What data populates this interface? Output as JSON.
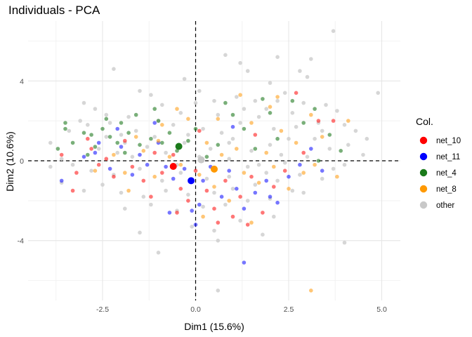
{
  "chart_data": {
    "type": "scatter",
    "title": "Individuals - PCA",
    "xlabel": "Dim1 (15.6%)",
    "ylabel": "Dim2 (10.6%)",
    "xlim": [
      -4.5,
      5.5
    ],
    "ylim": [
      -7,
      7
    ],
    "x_ticks": [
      -2.5,
      0.0,
      2.5,
      5.0
    ],
    "x_tick_labels": [
      "-2.5",
      "0.0",
      "2.5",
      "5.0"
    ],
    "y_ticks": [
      -4,
      0,
      4
    ],
    "y_tick_labels": [
      "-4",
      "0",
      "4"
    ],
    "grid": true,
    "reference_lines": {
      "x": 0,
      "y": 0,
      "style": "dashed"
    },
    "legend": {
      "title": "Col.",
      "position": "right",
      "entries": [
        {
          "label": "net_10",
          "color": "#ff0000"
        },
        {
          "label": "net_11",
          "color": "#0000ff"
        },
        {
          "label": "net_4",
          "color": "#1a7a1a"
        },
        {
          "label": "net_8",
          "color": "#ff9900"
        },
        {
          "label": "other",
          "color": "#c8c8c8"
        }
      ]
    },
    "series": [
      {
        "name": "other",
        "color": "#cfcfcf",
        "points": [
          [
            3.7,
            6.5
          ],
          [
            0.8,
            5.3
          ],
          [
            2.2,
            5.2
          ],
          [
            3.1,
            5.1
          ],
          [
            -2.2,
            4.6
          ],
          [
            2.8,
            4.5
          ],
          [
            4.9,
            3.4
          ],
          [
            -0.3,
            4.1
          ],
          [
            1.4,
            4.5
          ],
          [
            2.0,
            3.9
          ],
          [
            3.0,
            4.2
          ],
          [
            -1.5,
            3.5
          ],
          [
            -2.7,
            2.6
          ],
          [
            -2.4,
            2.3
          ],
          [
            0.5,
            3.0
          ],
          [
            1.6,
            3.0
          ],
          [
            2.2,
            3.0
          ],
          [
            3.5,
            2.8
          ],
          [
            4.3,
            1.5
          ],
          [
            4.0,
            1.8
          ],
          [
            -3.1,
            2.0
          ],
          [
            -1.2,
            3.3
          ],
          [
            0.1,
            3.5
          ],
          [
            1.1,
            3.2
          ],
          [
            2.6,
            2.4
          ],
          [
            3.3,
            1.9
          ],
          [
            -3.9,
            0.9
          ],
          [
            -3.6,
            0.1
          ],
          [
            -3.3,
            -0.2
          ],
          [
            -2.8,
            -0.5
          ],
          [
            -2.2,
            -0.7
          ],
          [
            -1.5,
            -0.4
          ],
          [
            -0.9,
            -1.0
          ],
          [
            -0.4,
            -0.6
          ],
          [
            0.3,
            -0.9
          ],
          [
            0.9,
            -0.8
          ],
          [
            1.4,
            -0.3
          ],
          [
            1.9,
            -0.6
          ],
          [
            2.4,
            -0.1
          ],
          [
            3.0,
            0.2
          ],
          [
            3.6,
            0.6
          ],
          [
            4.1,
            0.8
          ],
          [
            -2.0,
            1.3
          ],
          [
            -1.6,
            1.5
          ],
          [
            -1.1,
            1.2
          ],
          [
            -0.6,
            1.8
          ],
          [
            0.2,
            1.6
          ],
          [
            0.7,
            1.4
          ],
          [
            1.2,
            1.9
          ],
          [
            1.7,
            2.2
          ],
          [
            2.1,
            1.6
          ],
          [
            2.7,
            1.7
          ],
          [
            3.2,
            1.1
          ],
          [
            -2.6,
            0.6
          ],
          [
            -2.1,
            0.4
          ],
          [
            -1.7,
            0.2
          ],
          [
            -1.3,
            0.7
          ],
          [
            -0.8,
            0.4
          ],
          [
            -0.3,
            0.9
          ],
          [
            0.4,
            0.6
          ],
          [
            0.9,
            0.9
          ],
          [
            1.5,
            0.5
          ],
          [
            2.0,
            0.8
          ],
          [
            2.5,
            1.1
          ],
          [
            -3.4,
            1.5
          ],
          [
            -2.9,
            1.8
          ],
          [
            -2.3,
            1.9
          ],
          [
            -1.8,
            2.2
          ],
          [
            -1.0,
            2.0
          ],
          [
            -0.4,
            2.4
          ],
          [
            0.6,
            2.3
          ],
          [
            1.3,
            2.6
          ],
          [
            1.9,
            2.6
          ],
          [
            2.9,
            2.9
          ],
          [
            -2.5,
            -1.2
          ],
          [
            -2.0,
            -1.6
          ],
          [
            -1.4,
            -1.8
          ],
          [
            -0.8,
            -1.5
          ],
          [
            -0.2,
            -1.7
          ],
          [
            0.5,
            -1.6
          ],
          [
            1.0,
            -1.4
          ],
          [
            1.6,
            -1.2
          ],
          [
            2.2,
            -1.0
          ],
          [
            2.8,
            -0.7
          ],
          [
            -1.9,
            -2.4
          ],
          [
            -1.2,
            -2.2
          ],
          [
            -0.5,
            -2.5
          ],
          [
            0.2,
            -2.3
          ],
          [
            0.8,
            -2.2
          ],
          [
            1.4,
            -2.0
          ],
          [
            2.0,
            -1.9
          ],
          [
            2.6,
            -1.5
          ],
          [
            -0.1,
            -3.3
          ],
          [
            0.5,
            -3.5
          ],
          [
            1.2,
            -3.0
          ],
          [
            2.1,
            -2.8
          ],
          [
            -3.0,
            -1.5
          ],
          [
            -3.6,
            -1.1
          ],
          [
            4.5,
            0.3
          ],
          [
            4.0,
            -0.2
          ],
          [
            3.4,
            -0.9
          ],
          [
            2.9,
            -1.6
          ],
          [
            -1.0,
            -4.6
          ],
          [
            -1.5,
            -3.6
          ],
          [
            0.6,
            -4.0
          ],
          [
            1.8,
            -3.7
          ],
          [
            4.0,
            -4.1
          ],
          [
            0.6,
            -6.5
          ],
          [
            1.2,
            4.9
          ],
          [
            -3.0,
            2.9
          ],
          [
            3.8,
            2.5
          ],
          [
            0.0,
            2.9
          ],
          [
            -0.9,
            2.8
          ],
          [
            2.4,
            3.4
          ],
          [
            -1.9,
            0.9
          ],
          [
            -0.5,
            -0.2
          ],
          [
            0.1,
            0.2
          ],
          [
            0.9,
            0.1
          ],
          [
            1.7,
            -0.2
          ],
          [
            3.7,
            -0.4
          ],
          [
            -3.9,
            -0.3
          ],
          [
            -2.4,
            1.2
          ],
          [
            -0.2,
            1.3
          ],
          [
            1.0,
            1.1
          ],
          [
            2.3,
            0.3
          ],
          [
            3.4,
            1.5
          ],
          [
            4.6,
            1.1
          ]
        ]
      },
      {
        "name": "net_4",
        "color": "#1f7a1f",
        "points": [
          [
            -3.5,
            1.9
          ],
          [
            -3.5,
            1.6
          ],
          [
            -3.3,
            0.9
          ],
          [
            -3.0,
            1.4
          ],
          [
            -2.8,
            1.3
          ],
          [
            -2.7,
            0.7
          ],
          [
            -2.5,
            1.6
          ],
          [
            -2.3,
            1.2
          ],
          [
            -2.1,
            0.9
          ],
          [
            -2.0,
            1.9
          ],
          [
            -1.8,
            1.4
          ],
          [
            -1.6,
            2.3
          ],
          [
            -1.5,
            0.8
          ],
          [
            -1.2,
            1.1
          ],
          [
            -1.0,
            2.0
          ],
          [
            -0.9,
            0.9
          ],
          [
            -0.7,
            1.4
          ],
          [
            -0.5,
            0.5
          ],
          [
            -0.2,
            1.0
          ],
          [
            0.0,
            1.6
          ],
          [
            0.3,
            0.2
          ],
          [
            0.6,
            0.8
          ],
          [
            1.0,
            2.3
          ],
          [
            1.3,
            1.6
          ],
          [
            1.6,
            0.6
          ],
          [
            2.0,
            2.4
          ],
          [
            2.2,
            1.1
          ],
          [
            2.6,
            3.0
          ],
          [
            2.9,
            1.9
          ],
          [
            3.2,
            2.6
          ],
          [
            3.6,
            1.3
          ],
          [
            3.9,
            0.5
          ],
          [
            -3.7,
            0.6
          ],
          [
            -2.4,
            2.1
          ],
          [
            -1.1,
            2.6
          ],
          [
            0.8,
            2.9
          ],
          [
            1.8,
            3.1
          ],
          [
            -2.9,
            0.3
          ],
          [
            -1.9,
            0.4
          ],
          [
            3.3,
            0.0
          ]
        ]
      },
      {
        "name": "net_10",
        "color": "#ff1a1a",
        "points": [
          [
            -3.3,
            -1.5
          ],
          [
            -3.2,
            -0.6
          ],
          [
            -2.8,
            0.6
          ],
          [
            -2.6,
            -0.2
          ],
          [
            -2.4,
            0.1
          ],
          [
            -2.2,
            -0.8
          ],
          [
            -1.9,
            1.0
          ],
          [
            -1.7,
            -0.3
          ],
          [
            -1.4,
            -1.0
          ],
          [
            -1.1,
            0.4
          ],
          [
            -0.9,
            -0.6
          ],
          [
            -0.6,
            0.3
          ],
          [
            -0.4,
            -1.4
          ],
          [
            -0.2,
            -2.0
          ],
          [
            0.0,
            -0.5
          ],
          [
            0.3,
            -1.5
          ],
          [
            0.5,
            -2.4
          ],
          [
            0.8,
            -1.0
          ],
          [
            1.0,
            -2.8
          ],
          [
            1.2,
            -1.8
          ],
          [
            1.5,
            -0.8
          ],
          [
            1.8,
            -2.6
          ],
          [
            2.1,
            -1.3
          ],
          [
            2.4,
            -0.5
          ],
          [
            2.9,
            0.4
          ],
          [
            3.3,
            2.0
          ],
          [
            3.7,
            2.0
          ],
          [
            2.7,
            3.4
          ],
          [
            -1.2,
            -1.8
          ],
          [
            -0.5,
            -2.6
          ],
          [
            0.6,
            -3.1
          ],
          [
            1.4,
            -3.2
          ],
          [
            -3.6,
            0.3
          ],
          [
            -2.9,
            1.1
          ],
          [
            0.1,
            1.5
          ],
          [
            1.6,
            1.3
          ]
        ]
      },
      {
        "name": "net_11",
        "color": "#1a1aff",
        "points": [
          [
            -3.6,
            -1.0
          ],
          [
            -3.0,
            0.2
          ],
          [
            -2.7,
            0.4
          ],
          [
            -2.3,
            -0.4
          ],
          [
            -2.0,
            0.7
          ],
          [
            -1.7,
            -0.7
          ],
          [
            -1.5,
            0.3
          ],
          [
            -1.3,
            -0.2
          ],
          [
            -1.0,
            0.9
          ],
          [
            -0.8,
            -0.3
          ],
          [
            -0.6,
            -0.9
          ],
          [
            -0.3,
            -0.4
          ],
          [
            -0.1,
            -2.5
          ],
          [
            0.1,
            -2.2
          ],
          [
            0.2,
            -1.0
          ],
          [
            0.4,
            -0.3
          ],
          [
            0.7,
            -1.8
          ],
          [
            0.9,
            -0.5
          ],
          [
            1.1,
            -1.4
          ],
          [
            1.3,
            -2.4
          ],
          [
            1.6,
            -1.6
          ],
          [
            1.9,
            -1.0
          ],
          [
            2.2,
            -2.1
          ],
          [
            2.5,
            -0.8
          ],
          [
            2.8,
            -0.2
          ],
          [
            3.1,
            0.6
          ],
          [
            3.4,
            -0.5
          ],
          [
            1.3,
            -5.1
          ],
          [
            -0.7,
            -2.6
          ],
          [
            0.0,
            -3.2
          ],
          [
            -2.1,
            1.6
          ],
          [
            -1.1,
            1.9
          ],
          [
            1.0,
            1.7
          ],
          [
            2.0,
            -1.8
          ],
          [
            -2.6,
            0.9
          ]
        ]
      },
      {
        "name": "net_8",
        "color": "#ffa01a",
        "points": [
          [
            -2.7,
            -0.5
          ],
          [
            -2.2,
            0.3
          ],
          [
            -1.9,
            -0.6
          ],
          [
            -1.6,
            1.2
          ],
          [
            -1.4,
            0.5
          ],
          [
            -1.1,
            -0.8
          ],
          [
            -0.9,
            1.8
          ],
          [
            -0.7,
            0.2
          ],
          [
            -0.4,
            -0.2
          ],
          [
            -0.2,
            2.1
          ],
          [
            0.1,
            -0.7
          ],
          [
            0.3,
            0.9
          ],
          [
            0.5,
            -1.3
          ],
          [
            0.7,
            0.3
          ],
          [
            0.9,
            -2.0
          ],
          [
            1.1,
            0.6
          ],
          [
            1.3,
            -0.6
          ],
          [
            1.5,
            1.9
          ],
          [
            1.7,
            -1.1
          ],
          [
            1.9,
            0.4
          ],
          [
            2.1,
            -0.3
          ],
          [
            2.3,
            1.5
          ],
          [
            2.5,
            -1.4
          ],
          [
            2.7,
            0.9
          ],
          [
            2.9,
            -0.6
          ],
          [
            3.1,
            2.3
          ],
          [
            3.4,
            1.2
          ],
          [
            3.8,
            -0.8
          ],
          [
            4.1,
            2.0
          ],
          [
            -0.5,
            2.6
          ],
          [
            1.2,
            3.3
          ],
          [
            2.2,
            3.2
          ],
          [
            -1.8,
            -1.5
          ],
          [
            0.2,
            -2.8
          ],
          [
            1.5,
            -3.1
          ],
          [
            3.2,
            -0.2
          ],
          [
            3.1,
            -6.5
          ],
          [
            -1.0,
            1.0
          ],
          [
            2.0,
            2.7
          ],
          [
            0.6,
            2.1
          ]
        ]
      },
      {
        "name": "centroids",
        "points": [
          {
            "group": "net_10",
            "x": -0.6,
            "y": -0.28,
            "color": "#ff0000"
          },
          {
            "group": "net_11",
            "x": -0.12,
            "y": -1.0,
            "color": "#0000ff"
          },
          {
            "group": "net_4",
            "x": -0.45,
            "y": 0.72,
            "color": "#1a7a1a"
          },
          {
            "group": "net_8",
            "x": 0.5,
            "y": -0.42,
            "color": "#ff9900"
          },
          {
            "group": "other",
            "x": 0.15,
            "y": 0.05,
            "color": "#c8c8c8"
          }
        ]
      }
    ]
  }
}
